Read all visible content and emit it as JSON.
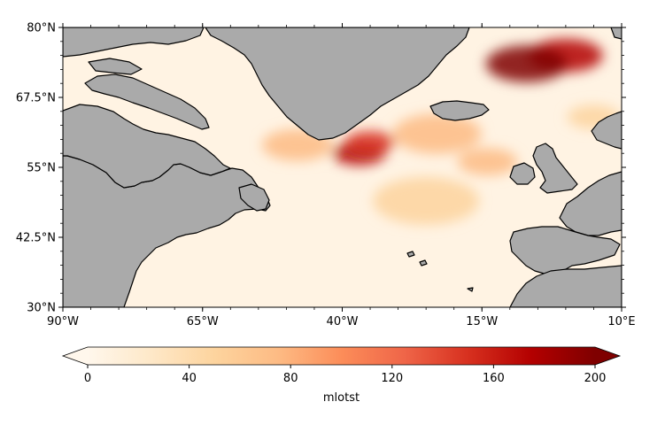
{
  "map": {
    "extent": {
      "lon": [
        -90,
        10
      ],
      "lat": [
        30,
        80
      ]
    },
    "projection": "PlateCarree",
    "land_color": "#aaaaaa",
    "coastline_color": "#000000",
    "lon_ticks": [
      {
        "value": -90,
        "label": "90°W"
      },
      {
        "value": -65,
        "label": "65°W"
      },
      {
        "value": -40,
        "label": "40°W"
      },
      {
        "value": -15,
        "label": "15°W"
      },
      {
        "value": 10,
        "label": "10°E"
      }
    ],
    "lat_ticks": [
      {
        "value": 80,
        "label": "80°N"
      },
      {
        "value": 67.5,
        "label": "67.5°N"
      },
      {
        "value": 55,
        "label": "55°N"
      },
      {
        "value": 42.5,
        "label": "42.5°N"
      },
      {
        "value": 30,
        "label": "30°N"
      }
    ]
  },
  "field": {
    "variable": "mlotst",
    "colormap": "OrRd",
    "hotspots": [
      {
        "lon": 0,
        "lat": 75,
        "value": 180
      },
      {
        "lon": -7,
        "lat": 73.5,
        "value": 195
      },
      {
        "lon": -37,
        "lat": 57.5,
        "value": 175
      },
      {
        "lon": -35,
        "lat": 59.5,
        "value": 150
      },
      {
        "lon": -48,
        "lat": 59,
        "value": 70
      },
      {
        "lon": -23,
        "lat": 61,
        "value": 85
      },
      {
        "lon": -14,
        "lat": 56,
        "value": 75
      },
      {
        "lon": -25,
        "lat": 49,
        "value": 45
      },
      {
        "lon": 5,
        "lat": 64,
        "value": 60
      }
    ]
  },
  "colorbar": {
    "label": "mlotst",
    "min": 0,
    "max": 200,
    "extend": "both",
    "ticks": [
      {
        "value": 0,
        "label": "0"
      },
      {
        "value": 40,
        "label": "40"
      },
      {
        "value": 80,
        "label": "80"
      },
      {
        "value": 120,
        "label": "120"
      },
      {
        "value": 160,
        "label": "160"
      },
      {
        "value": 200,
        "label": "200"
      }
    ],
    "stops": [
      "#fff7ec",
      "#fee8c8",
      "#fdd49e",
      "#fdbb84",
      "#fc8d59",
      "#ef6548",
      "#d7301f",
      "#b30000",
      "#7f0000"
    ]
  }
}
